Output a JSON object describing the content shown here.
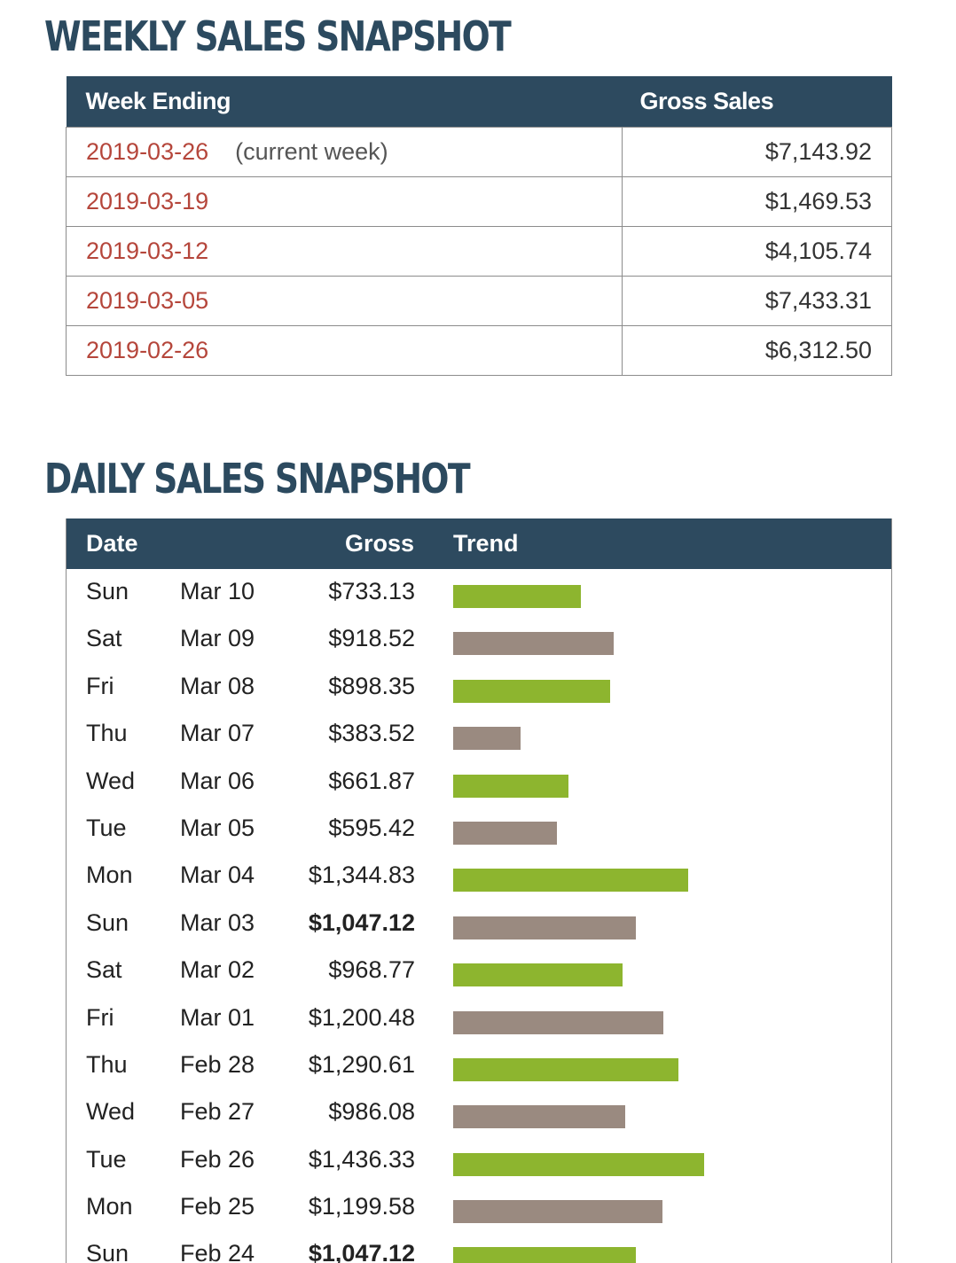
{
  "weekly": {
    "title": "WEEKLY SALES SNAPSHOT",
    "header_week": "Week Ending",
    "header_gross": "Gross Sales",
    "rows": [
      {
        "date": "2019-03-26",
        "note": "(current week)",
        "amount": "$7,143.92"
      },
      {
        "date": "2019-03-19",
        "note": "",
        "amount": "$1,469.53"
      },
      {
        "date": "2019-03-12",
        "note": "",
        "amount": "$4,105.74"
      },
      {
        "date": "2019-03-05",
        "note": "",
        "amount": "$7,433.31"
      },
      {
        "date": "2019-02-26",
        "note": "",
        "amount": "$6,312.50"
      }
    ]
  },
  "daily": {
    "title": "DAILY SALES SNAPSHOT",
    "header_date": "Date",
    "header_gross": "Gross",
    "header_trend": "Trend",
    "rows": [
      {
        "day": "Sun",
        "date": "Mar 10",
        "gross": "$733.13",
        "value": 733.13,
        "bold": false
      },
      {
        "day": "Sat",
        "date": "Mar 09",
        "gross": "$918.52",
        "value": 918.52,
        "bold": false
      },
      {
        "day": "Fri",
        "date": "Mar 08",
        "gross": "$898.35",
        "value": 898.35,
        "bold": false
      },
      {
        "day": "Thu",
        "date": "Mar 07",
        "gross": "$383.52",
        "value": 383.52,
        "bold": false
      },
      {
        "day": "Wed",
        "date": "Mar 06",
        "gross": "$661.87",
        "value": 661.87,
        "bold": false
      },
      {
        "day": "Tue",
        "date": "Mar 05",
        "gross": "$595.42",
        "value": 595.42,
        "bold": false
      },
      {
        "day": "Mon",
        "date": "Mar 04",
        "gross": "$1,344.83",
        "value": 1344.83,
        "bold": false
      },
      {
        "day": "Sun",
        "date": "Mar 03",
        "gross": "$1,047.12",
        "value": 1047.12,
        "bold": true
      },
      {
        "day": "Sat",
        "date": "Mar 02",
        "gross": "$968.77",
        "value": 968.77,
        "bold": false
      },
      {
        "day": "Fri",
        "date": "Mar 01",
        "gross": "$1,200.48",
        "value": 1200.48,
        "bold": false
      },
      {
        "day": "Thu",
        "date": "Feb 28",
        "gross": "$1,290.61",
        "value": 1290.61,
        "bold": false
      },
      {
        "day": "Wed",
        "date": "Feb 27",
        "gross": "$986.08",
        "value": 986.08,
        "bold": false
      },
      {
        "day": "Tue",
        "date": "Feb 26",
        "gross": "$1,436.33",
        "value": 1436.33,
        "bold": false
      },
      {
        "day": "Mon",
        "date": "Feb 25",
        "gross": "$1,199.58",
        "value": 1199.58,
        "bold": false
      },
      {
        "day": "Sun",
        "date": "Feb 24",
        "gross": "$1,047.12",
        "value": 1047.12,
        "bold": true
      }
    ]
  },
  "colors": {
    "header_bg": "#2d4a5f",
    "title": "#2c4a5f",
    "date_red": "#b5463b",
    "bar_green": "#8db52f",
    "bar_taupe": "#9a8a80"
  }
}
